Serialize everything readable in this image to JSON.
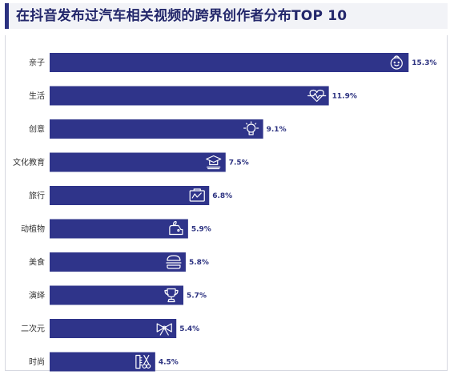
{
  "header": {
    "title": "在抖音发布过汽车相关视频的跨界创作者分布TOP 10"
  },
  "colors": {
    "bar": "#2f348a",
    "accent": "#2c3280",
    "header_bg": "#f2f3f7",
    "text": "#333333"
  },
  "chart_data": {
    "type": "bar",
    "orientation": "horizontal",
    "title": "在抖音发布过汽车相关视频的跨界创作者分布TOP 10",
    "categories": [
      "亲子",
      "生活",
      "创意",
      "文化教育",
      "旅行",
      "动植物",
      "美食",
      "演绎",
      "二次元",
      "时尚"
    ],
    "values": [
      15.3,
      11.9,
      9.1,
      7.5,
      6.8,
      5.9,
      5.8,
      5.7,
      5.4,
      4.5
    ],
    "value_labels": [
      "15.3%",
      "11.9%",
      "9.1%",
      "7.5%",
      "6.8%",
      "5.9%",
      "5.8%",
      "5.7%",
      "5.4%",
      "4.5%"
    ],
    "icons": [
      "baby-face-icon",
      "heart-pulse-icon",
      "lightbulb-icon",
      "graduation-cap-icon",
      "travel-map-icon",
      "plant-animal-icon",
      "burger-icon",
      "trophy-icon",
      "bow-icon",
      "scissors-comb-icon"
    ],
    "unit": "%",
    "grid": false,
    "legend": "none"
  }
}
